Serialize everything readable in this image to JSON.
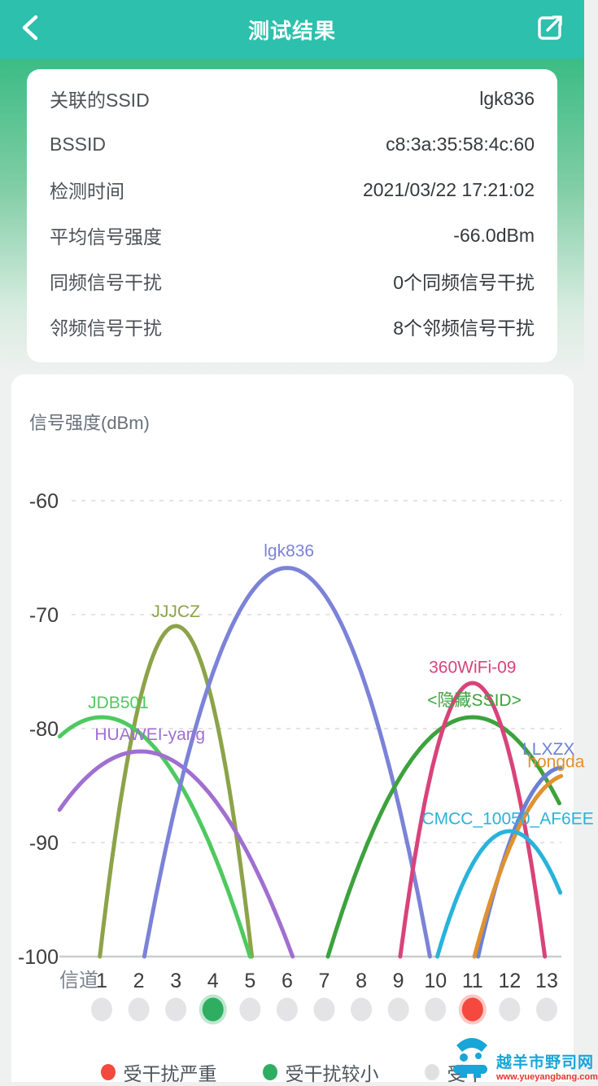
{
  "theme": {
    "header_color": "#2cc0ad",
    "page_background": "#eff1f0",
    "card_background": "#ffffff"
  },
  "header": {
    "title": "测试结果",
    "back_icon": "chevron-left",
    "share_icon": "open-external"
  },
  "info_card": {
    "rows": [
      {
        "label": "关联的SSID",
        "value": "lgk836"
      },
      {
        "label": "BSSID",
        "value": "c8:3a:35:58:4c:60"
      },
      {
        "label": "检测时间",
        "value": "2021/03/22 17:21:02"
      },
      {
        "label": "平均信号强度",
        "value": "-66.0dBm"
      },
      {
        "label": "同频信号干扰",
        "value": "0个同频信号干扰"
      },
      {
        "label": "邻频信号干扰",
        "value": "8个邻频信号干扰"
      }
    ]
  },
  "chart_data": {
    "type": "line",
    "title": "信号强度(dBm)",
    "ylabel": "信号强度(dBm)",
    "xlabel": "信道",
    "ylim": [
      -100,
      -58
    ],
    "yticks": [
      -60,
      -70,
      -80,
      -90,
      -100
    ],
    "channels": [
      1,
      2,
      3,
      4,
      5,
      6,
      7,
      8,
      9,
      10,
      11,
      12,
      13
    ],
    "grid": "dashed-horizontal",
    "series": [
      {
        "name": "JJJCZ",
        "color": "#8ca349",
        "center_channel": 3.0,
        "peak_dbm": -71.0,
        "half_span_channels": 2.05,
        "label": {
          "channel": 3.0,
          "dbm": -70.2
        }
      },
      {
        "name": "JDB501",
        "color": "#4ec95f",
        "center_channel": 1.0,
        "peak_dbm": -79.0,
        "half_span_channels": 4.0,
        "label": {
          "channel": 1.45,
          "dbm": -78.2
        }
      },
      {
        "name": "HUAWEI-yang",
        "color": "#a06fd0",
        "center_channel": 2.05,
        "peak_dbm": -82.0,
        "half_span_channels": 4.1,
        "label": {
          "channel": 2.3,
          "dbm": -81.0
        }
      },
      {
        "name": "lgk836",
        "color": "#7b82d8",
        "center_channel": 6.0,
        "peak_dbm": -65.9,
        "half_span_channels": 3.85,
        "label": {
          "channel": 6.05,
          "dbm": -64.9
        }
      },
      {
        "name": "<隐藏SSID>",
        "color": "#3da23d",
        "center_channel": 11.0,
        "peak_dbm": -79.0,
        "half_span_channels": 3.9,
        "label": {
          "channel": 11.05,
          "dbm": -78.0
        }
      },
      {
        "name": "360WiFi-09",
        "color": "#d9437a",
        "center_channel": 11.0,
        "peak_dbm": -76.0,
        "half_span_channels": 1.95,
        "label": {
          "channel": 11.0,
          "dbm": -75.1
        }
      },
      {
        "name": "LLXZX",
        "color": "#6b80d6",
        "center_channel": 13.45,
        "peak_dbm": -83.4,
        "half_span_channels": 2.3,
        "label": {
          "channel": 13.05,
          "dbm": -82.3
        }
      },
      {
        "name": "hongda",
        "color": "#e0922f",
        "center_channel": 13.65,
        "peak_dbm": -84.0,
        "half_span_channels": 2.6,
        "label": {
          "channel": 13.25,
          "dbm": -83.4
        }
      },
      {
        "name": "CMCC_10050_AF6EE",
        "color": "#29b3da",
        "center_channel": 12.0,
        "peak_dbm": -89.0,
        "half_span_channels": 1.95,
        "label": {
          "channel": 11.95,
          "dbm": -88.4
        }
      }
    ],
    "floor_dbm": -100,
    "channel_dots": [
      {
        "channel": 4,
        "status": "minor"
      },
      {
        "channel": 11,
        "status": "severe"
      }
    ],
    "dot_colors": {
      "default": "#e4e4e6",
      "minor": "#2fae62",
      "severe": "#f5493f"
    }
  },
  "legend": {
    "items": [
      {
        "label": "受干扰严重",
        "color": "#f5493f"
      },
      {
        "label": "受干扰较小",
        "color": "#2fae62"
      },
      {
        "label": "受干",
        "color": "#dfe1e1"
      }
    ]
  },
  "watermark": {
    "site_name": "越羊市野司网",
    "url": "www.yueyangbang.com",
    "color": "#18a5d8"
  }
}
